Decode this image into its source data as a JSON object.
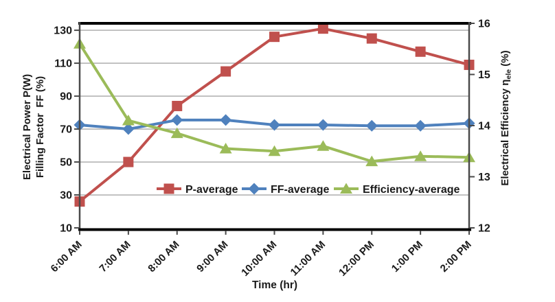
{
  "chart_data": {
    "type": "line",
    "title": "",
    "categories": [
      "6:00 AM",
      "7:00 AM",
      "8:00 AM",
      "9:00 AM",
      "10:00 AM",
      "11:00 AM",
      "12:00 PM",
      "1:00 PM",
      "2:00 PM"
    ],
    "series": [
      {
        "name": "P-average",
        "axis": "left",
        "marker": "square",
        "color": "#C0504D",
        "values": [
          26,
          50,
          84,
          105,
          126,
          131,
          125,
          117,
          109
        ]
      },
      {
        "name": "FF-average",
        "axis": "left",
        "marker": "diamond",
        "color": "#4F81BD",
        "values": [
          72.5,
          70,
          75.5,
          75.5,
          72.5,
          72.5,
          72,
          72,
          73.5
        ]
      },
      {
        "name": "Efficiency-average",
        "axis": "right",
        "marker": "triangle",
        "color": "#9BBB59",
        "values": [
          15.6,
          14.1,
          13.85,
          13.55,
          13.5,
          13.6,
          13.3,
          13.4,
          13.38
        ]
      }
    ],
    "left_axis": {
      "title_line1": "Electrical Power P(W)",
      "title_line2": "Filling Factor  FF (%)",
      "ticks": [
        130,
        110,
        90,
        70,
        50,
        30,
        10
      ],
      "min": 10,
      "max": 134.2
    },
    "right_axis": {
      "title_prefix": "Electrical Efficiency η",
      "title_sub": "ele",
      "title_suffix": " (%)",
      "ticks": [
        16,
        15,
        14,
        13,
        12
      ],
      "min": 12,
      "max": 16
    },
    "x_axis": {
      "title": "Time (hr)"
    },
    "legend": [
      "P-average",
      "FF-average",
      "Efficiency-average"
    ],
    "legend_position": "inside-bottom",
    "grid": true,
    "colors": {
      "gridline": "#A6A6A6",
      "axis_frame": "#000000",
      "axis_side": "#4A4A4A",
      "text": "#1A1A1A",
      "background": "#FFFFFF"
    }
  }
}
